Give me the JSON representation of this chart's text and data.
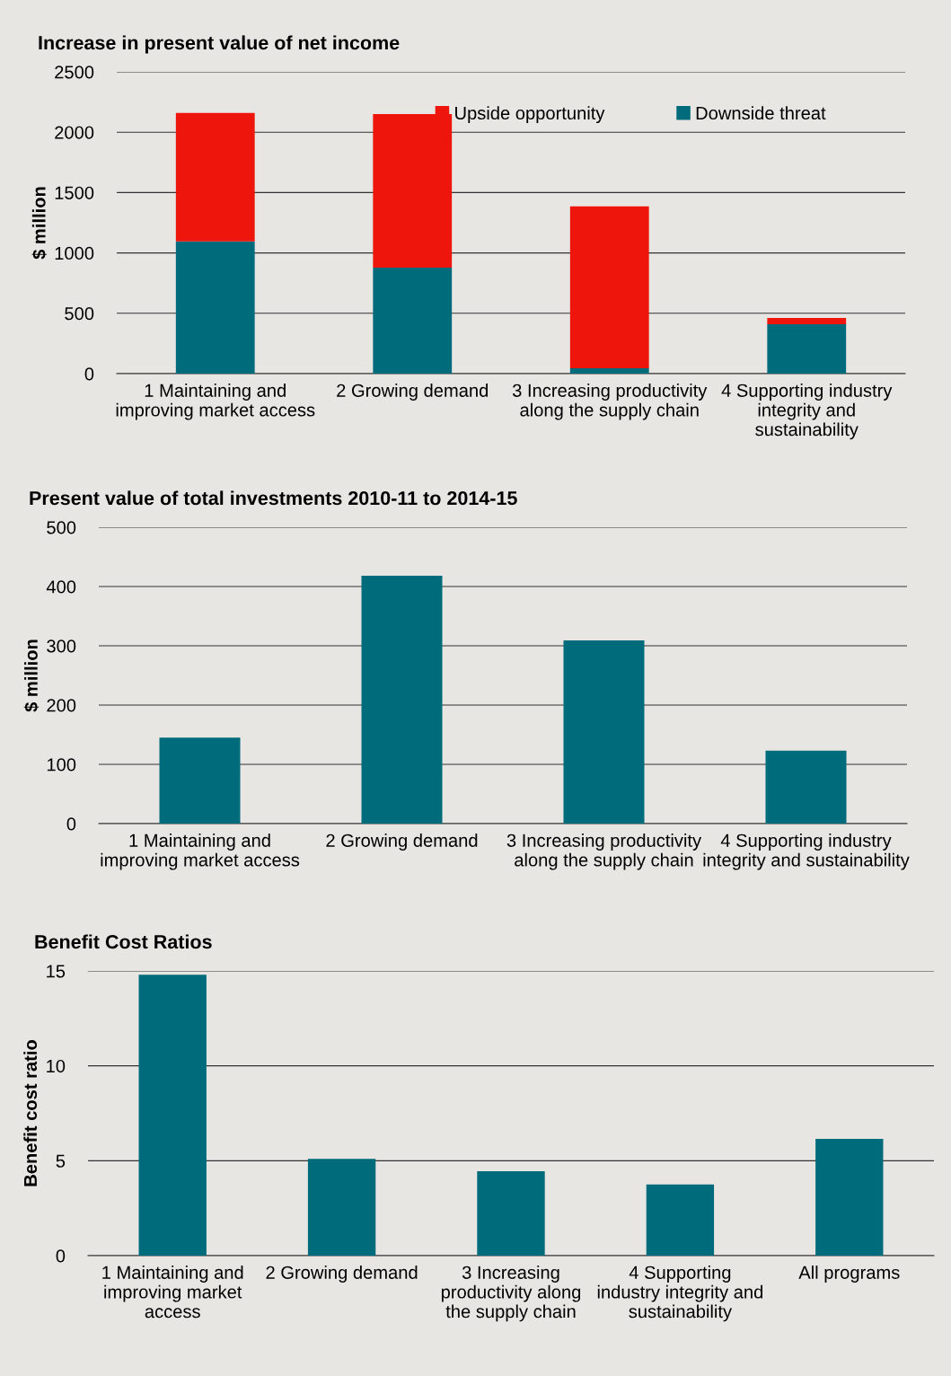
{
  "chart_data": [
    {
      "type": "bar",
      "title": "Increase in present value of net income",
      "ylabel": "$ million",
      "categories": [
        "1 Maintaining and\nimproving market access",
        "2 Growing demand",
        "3 Increasing productivity\nalong the supply chain",
        "4 Supporting industry\nintegrity and\nsustainability"
      ],
      "stacked": true,
      "series": [
        {
          "name": "Downside threat",
          "color": "#006b7a",
          "values": [
            1095,
            878,
            45,
            410
          ]
        },
        {
          "name": "Upside opportunity",
          "color": "#ee160c",
          "values": [
            1065,
            1272,
            1340,
            52
          ]
        }
      ],
      "ylim": [
        0,
        2500
      ],
      "yticks": [
        0,
        500,
        1000,
        1500,
        2000,
        2500
      ],
      "grid": "y",
      "legend": "top right"
    },
    {
      "type": "bar",
      "title": "Present value of total investments 2010-11 to 2014-15",
      "ylabel": "$ million",
      "categories": [
        "1 Maintaining and\nimproving market access",
        "2 Growing demand",
        "3 Increasing productivity\nalong the supply chain",
        "4 Supporting industry\nintegrity and sustainability"
      ],
      "series": [
        {
          "color": "#006b7a",
          "values": [
            145,
            418,
            309,
            123
          ]
        }
      ],
      "ylim": [
        0,
        500
      ],
      "yticks": [
        0,
        100,
        200,
        300,
        400,
        500
      ],
      "grid": "y"
    },
    {
      "type": "bar",
      "title": "Benefit Cost Ratios",
      "ylabel": "Benefit cost ratio",
      "categories": [
        "1 Maintaining and\nimproving market\naccess",
        "2 Growing demand",
        "3 Increasing\nproductivity along\nthe supply chain",
        "4 Supporting\nindustry integrity and\nsustainability",
        "All programs"
      ],
      "series": [
        {
          "color": "#006b7a",
          "values": [
            14.8,
            5.1,
            4.45,
            3.75,
            6.15
          ]
        }
      ],
      "ylim": [
        0,
        15
      ],
      "yticks": [
        0,
        5,
        10,
        15
      ],
      "grid": "y"
    }
  ]
}
